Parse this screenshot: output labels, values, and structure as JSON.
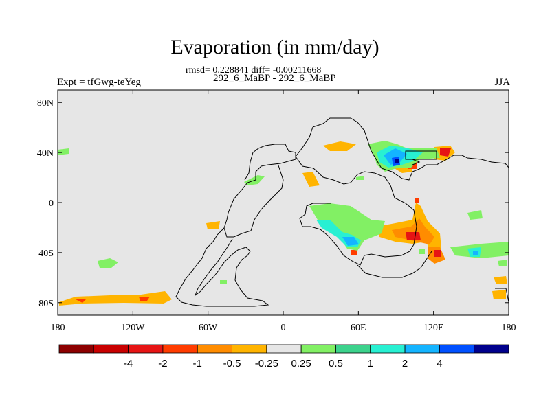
{
  "title": "Evaporation (in mm/day)",
  "stats": "rmsd= 0.228841 diff= -0.00211668",
  "subtitle": "292_6_MaBP - 292_6_MaBP",
  "left_string": "Expt = tfGwg-teYeg",
  "right_string": "JJA",
  "map": {
    "lon_range": [
      -180,
      180
    ],
    "lat_range": [
      -90,
      90
    ],
    "background_color": "#e6e6e6",
    "x_ticks": [
      {
        "value": -180,
        "label": "180"
      },
      {
        "value": -120,
        "label": "120W"
      },
      {
        "value": -60,
        "label": "60W"
      },
      {
        "value": 0,
        "label": "0"
      },
      {
        "value": 60,
        "label": "60E"
      },
      {
        "value": 120,
        "label": "120E"
      },
      {
        "value": 180,
        "label": "180"
      }
    ],
    "y_ticks": [
      {
        "value": 80,
        "label": "80N"
      },
      {
        "value": 40,
        "label": "40N"
      },
      {
        "value": 0,
        "label": "0"
      },
      {
        "value": -40,
        "label": "40S"
      },
      {
        "value": -80,
        "label": "80S"
      }
    ]
  },
  "colorbar": {
    "colors": [
      "#8c0000",
      "#c80000",
      "#e61414",
      "#ff3c00",
      "#ff8c00",
      "#ffb400",
      "#e6e6e6",
      "#82f064",
      "#3cd28c",
      "#28f0d2",
      "#14b4ff",
      "#0050ff",
      "#00008c"
    ],
    "labels": [
      "-4",
      "-2",
      "-1",
      "-0.5",
      "-0.25",
      "0.25",
      "0.5",
      "1",
      "2",
      "4"
    ]
  }
}
